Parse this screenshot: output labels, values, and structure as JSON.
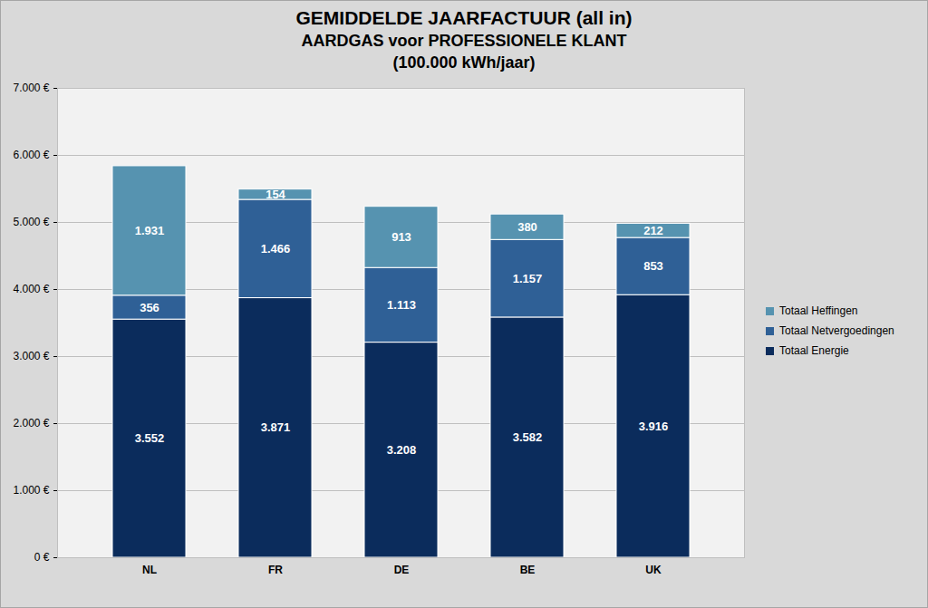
{
  "chart_data": {
    "type": "bar",
    "stacked": true,
    "data_labels": true,
    "grid": true,
    "legend": "right",
    "title": "GEMIDDELDE JAARFACTUUR (all in)",
    "subtitle": [
      "AARDGAS voor PROFESSIONELE KLANT",
      "(100.000 kWh/jaar)"
    ],
    "categories": [
      "NL",
      "FR",
      "DE",
      "BE",
      "UK"
    ],
    "series": [
      {
        "name": "Totaal Energie",
        "color": "#0b2c5c",
        "values": [
          3552,
          3871,
          3208,
          3582,
          3916
        ],
        "value_labels": [
          "3.552",
          "3.871",
          "3.208",
          "3.582",
          "3.916"
        ]
      },
      {
        "name": "Totaal Netvergoedingen",
        "color": "#2f6096",
        "values": [
          356,
          1466,
          1113,
          1157,
          853
        ],
        "value_labels": [
          "356",
          "1.466",
          "1.113",
          "1.157",
          "853"
        ]
      },
      {
        "name": "Totaal Heffingen",
        "color": "#5693b0",
        "values": [
          1931,
          154,
          913,
          380,
          212
        ],
        "value_labels": [
          "1.931",
          "154",
          "913",
          "380",
          "212"
        ]
      }
    ],
    "ylim": [
      0,
      7000
    ],
    "yticks": [
      {
        "value": 0,
        "label": "0 €"
      },
      {
        "value": 1000,
        "label": "1.000 €"
      },
      {
        "value": 2000,
        "label": "2.000 €"
      },
      {
        "value": 3000,
        "label": "3.000 €"
      },
      {
        "value": 4000,
        "label": "4.000 €"
      },
      {
        "value": 5000,
        "label": "5.000 €"
      },
      {
        "value": 6000,
        "label": "6.000 €"
      },
      {
        "value": 7000,
        "label": "7.000 €"
      }
    ]
  }
}
